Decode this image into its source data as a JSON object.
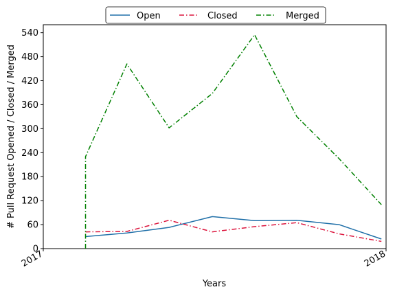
{
  "chart_data": {
    "type": "line",
    "xlabel": "Years",
    "ylabel": "# Pull Request Opened / Closed / Merged",
    "x_ticks": [
      "2017",
      "2018"
    ],
    "x_range": [
      "2017-01-01",
      "2018-01-01"
    ],
    "ylim": [
      0,
      560
    ],
    "y_ticks": [
      0,
      60,
      120,
      180,
      240,
      300,
      360,
      420,
      480,
      540
    ],
    "grid": false,
    "legend_position": "top-center",
    "x": [
      "2017-02-15",
      "2017-03-31",
      "2017-05-15",
      "2017-06-30",
      "2017-08-14",
      "2017-09-28",
      "2017-11-12",
      "2017-12-27"
    ],
    "series": [
      {
        "name": "Open",
        "color": "#1f6fa8",
        "dash": "solid",
        "values": [
          30,
          39,
          53,
          80,
          70,
          71,
          60,
          24
        ]
      },
      {
        "name": "Closed",
        "color": "#dc143c",
        "dash": "dashdot",
        "values": [
          42,
          43,
          71,
          42,
          55,
          65,
          37,
          18
        ]
      },
      {
        "name": "Merged",
        "color": "#008000",
        "dash": "dashdot",
        "values": [
          230,
          462,
          302,
          388,
          535,
          330,
          225,
          110
        ],
        "starts_from_zero": true
      }
    ]
  }
}
